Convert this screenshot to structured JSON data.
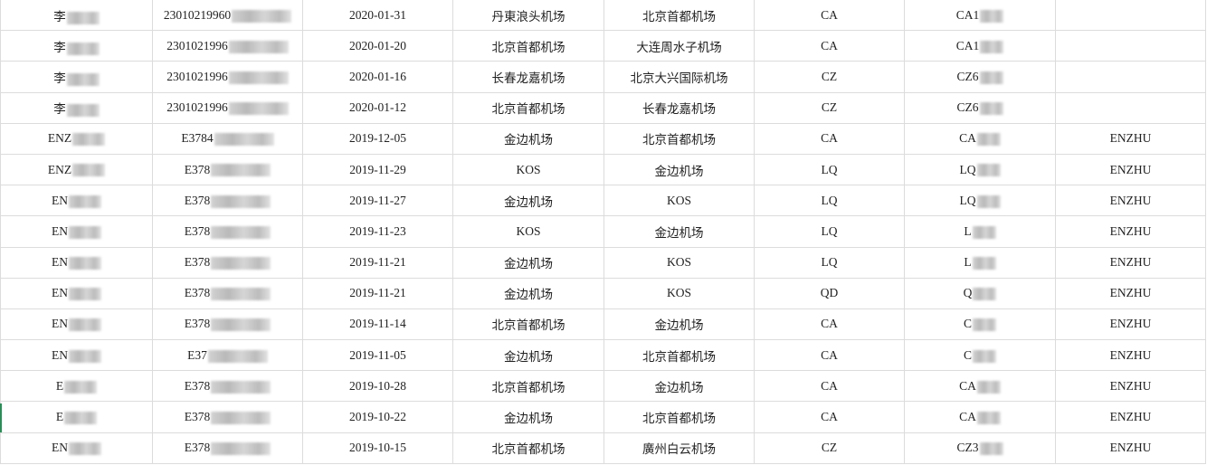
{
  "rows": [
    {
      "name": "李",
      "id": "23010219960",
      "date": "2020-01-31",
      "from": "丹東浪头机场",
      "to": "北京首都机场",
      "airline": "CA",
      "flight": "CA1",
      "pnr": ""
    },
    {
      "name": "李",
      "id": "2301021996",
      "date": "2020-01-20",
      "from": "北京首都机场",
      "to": "大连周水子机场",
      "airline": "CA",
      "flight": "CA1",
      "pnr": ""
    },
    {
      "name": "李",
      "id": "2301021996",
      "date": "2020-01-16",
      "from": "长春龙嘉机场",
      "to": "北京大兴国际机场",
      "airline": "CZ",
      "flight": "CZ6",
      "pnr": ""
    },
    {
      "name": "李",
      "id": "2301021996",
      "date": "2020-01-12",
      "from": "北京首都机场",
      "to": "长春龙嘉机场",
      "airline": "CZ",
      "flight": "CZ6",
      "pnr": ""
    },
    {
      "name": "ENZ",
      "id": "E3784",
      "date": "2019-12-05",
      "from": "金边机场",
      "to": "北京首都机场",
      "airline": "CA",
      "flight": "CA",
      "pnr": "ENZHU"
    },
    {
      "name": "ENZ",
      "id": "E378",
      "date": "2019-11-29",
      "from": "KOS",
      "to": "金边机场",
      "airline": "LQ",
      "flight": "LQ",
      "pnr": "ENZHU"
    },
    {
      "name": "EN",
      "id": "E378",
      "date": "2019-11-27",
      "from": "金边机场",
      "to": "KOS",
      "airline": "LQ",
      "flight": "LQ",
      "pnr": "ENZHU"
    },
    {
      "name": "EN",
      "id": "E378",
      "date": "2019-11-23",
      "from": "KOS",
      "to": "金边机场",
      "airline": "LQ",
      "flight": "L",
      "pnr": "ENZHU"
    },
    {
      "name": "EN",
      "id": "E378",
      "date": "2019-11-21",
      "from": "金边机场",
      "to": "KOS",
      "airline": "LQ",
      "flight": "L",
      "pnr": "ENZHU"
    },
    {
      "name": "EN",
      "id": "E378",
      "date": "2019-11-21",
      "from": "金边机场",
      "to": "KOS",
      "airline": "QD",
      "flight": "Q",
      "pnr": "ENZHU"
    },
    {
      "name": "EN",
      "id": "E378",
      "date": "2019-11-14",
      "from": "北京首都机场",
      "to": "金边机场",
      "airline": "CA",
      "flight": "C",
      "pnr": "ENZHU"
    },
    {
      "name": "EN",
      "id": "E37",
      "date": "2019-11-05",
      "from": "金边机场",
      "to": "北京首都机场",
      "airline": "CA",
      "flight": "C",
      "pnr": "ENZHU"
    },
    {
      "name": "E",
      "id": "E378",
      "date": "2019-10-28",
      "from": "北京首都机场",
      "to": "金边机场",
      "airline": "CA",
      "flight": "CA",
      "pnr": "ENZHU"
    },
    {
      "name": "E",
      "id": "E378",
      "date": "2019-10-22",
      "from": "金边机场",
      "to": "北京首都机场",
      "airline": "CA",
      "flight": "CA",
      "pnr": "ENZHU"
    },
    {
      "name": "EN",
      "id": "E378",
      "date": "2019-10-15",
      "from": "北京首都机场",
      "to": "廣州白云机场",
      "airline": "CZ",
      "flight": "CZ3",
      "pnr": "ENZHU"
    }
  ]
}
